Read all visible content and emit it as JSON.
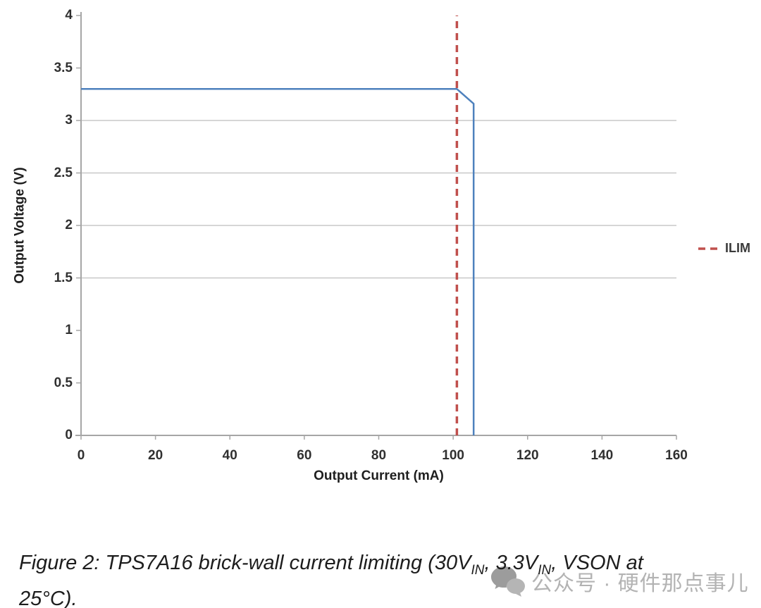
{
  "chart_data": {
    "type": "line",
    "title": "",
    "xlabel": "Output Current (mA)",
    "ylabel": "Output Voltage (V)",
    "xlim": [
      0,
      160
    ],
    "ylim": [
      0,
      4
    ],
    "x_ticks": [
      0,
      20,
      40,
      60,
      80,
      100,
      120,
      140,
      160
    ],
    "y_ticks": [
      0,
      0.5,
      1,
      1.5,
      2,
      2.5,
      3,
      3.5,
      4
    ],
    "gridlines_y": [
      1.5,
      2,
      2.5,
      3
    ],
    "grid": "horizontal-partial",
    "legend_position": "right",
    "series": [
      {
        "name": "Output Voltage",
        "color": "#4E81BD",
        "style": "solid",
        "points": [
          [
            0,
            3.3
          ],
          [
            101,
            3.3
          ],
          [
            105.5,
            3.16
          ],
          [
            105.5,
            0
          ]
        ]
      },
      {
        "name": "ILIM",
        "color": "#C0504D",
        "style": "dashed",
        "points": [
          [
            101,
            0
          ],
          [
            101,
            4
          ]
        ]
      }
    ]
  },
  "axes": {
    "x_title": "Output Current (mA)",
    "y_title": "Output Voltage (V)"
  },
  "legend": {
    "ilim_label": "ILIM",
    "ilim_color": "#C0504D"
  },
  "caption": {
    "part1": "Figure 2: TPS7A16 brick-wall current limiting (30V",
    "sub1": "IN",
    "part2": ", 3.3V",
    "sub2": "IN",
    "part3": ", VSON at",
    "line2": "25°C)."
  },
  "watermark": {
    "icon": "wechat-icon",
    "text": "公众号 · 硬件那点事儿"
  },
  "colors": {
    "series_blue": "#4E81BD",
    "ilim_red": "#C0504D",
    "gridline": "#C8C8C8",
    "axis": "#A6A6A6",
    "tick_text": "#303030",
    "watermark_gray": "#B3B3B3"
  }
}
